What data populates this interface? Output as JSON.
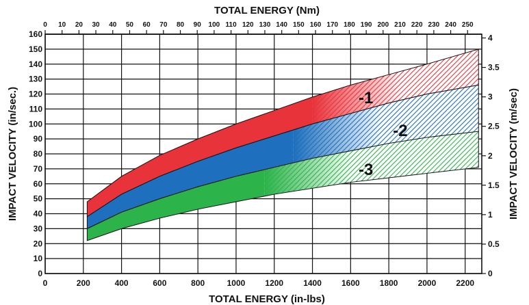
{
  "chart_data": {
    "type": "area",
    "title": "",
    "top_axis": {
      "label": "TOTAL ENERGY (Nm)",
      "range": [
        0,
        258.4
      ],
      "ticks": [
        "0",
        "10",
        "20",
        "30",
        "40",
        "50",
        "60",
        "70",
        "80",
        "90",
        "100",
        "110",
        "120",
        "130",
        "140",
        "150",
        "160",
        "170",
        "180",
        "190",
        "200",
        "210",
        "220",
        "230",
        "240",
        "250"
      ]
    },
    "x_axis": {
      "label": "TOTAL ENERGY (in-lbs)",
      "range": [
        0,
        2287
      ],
      "ticks": [
        "0",
        "200",
        "400",
        "600",
        "800",
        "1000",
        "1200",
        "1400",
        "1600",
        "1800",
        "2000",
        "2200"
      ]
    },
    "y_axis_left": {
      "label": "IMPACT VELOCITY (in/sec.)",
      "range": [
        0,
        160
      ],
      "ticks": [
        "0",
        "10",
        "20",
        "30",
        "40",
        "50",
        "60",
        "70",
        "80",
        "90",
        "100",
        "110",
        "120",
        "130",
        "140",
        "150",
        "160"
      ]
    },
    "y_axis_right": {
      "label": "IMPACT VELOCITY (m/sec)",
      "range": [
        0,
        4.064
      ],
      "ticks": [
        "0",
        "0.5",
        "1",
        "1.5",
        "2",
        "2.5",
        "3",
        "3.5",
        "4"
      ]
    },
    "grid": true,
    "series": [
      {
        "name": "-1",
        "color": "#e8333b",
        "hatch_from_x": 1400,
        "upper": [
          [
            220,
            48
          ],
          [
            400,
            65
          ],
          [
            600,
            79
          ],
          [
            800,
            90
          ],
          [
            1000,
            100
          ],
          [
            1200,
            109
          ],
          [
            1400,
            118
          ],
          [
            1600,
            126
          ],
          [
            1800,
            133
          ],
          [
            2000,
            140
          ],
          [
            2270,
            150
          ]
        ],
        "lower": [
          [
            220,
            38
          ],
          [
            400,
            53
          ],
          [
            600,
            65
          ],
          [
            800,
            75
          ],
          [
            1000,
            84
          ],
          [
            1200,
            92
          ],
          [
            1400,
            100
          ],
          [
            1600,
            107
          ],
          [
            1800,
            114
          ],
          [
            2000,
            120
          ],
          [
            2270,
            126
          ]
        ]
      },
      {
        "name": "-2",
        "color": "#1e6fbe",
        "hatch_from_x": 1300,
        "upper": [
          [
            220,
            38
          ],
          [
            400,
            53
          ],
          [
            600,
            65
          ],
          [
            800,
            75
          ],
          [
            1000,
            84
          ],
          [
            1200,
            92
          ],
          [
            1400,
            100
          ],
          [
            1600,
            107
          ],
          [
            1800,
            114
          ],
          [
            2000,
            120
          ],
          [
            2270,
            126
          ]
        ],
        "lower": [
          [
            220,
            30
          ],
          [
            400,
            41
          ],
          [
            600,
            50
          ],
          [
            800,
            58
          ],
          [
            1000,
            65
          ],
          [
            1200,
            71
          ],
          [
            1400,
            77
          ],
          [
            1600,
            82
          ],
          [
            1800,
            87
          ],
          [
            2000,
            91
          ],
          [
            2270,
            95
          ]
        ]
      },
      {
        "name": "-3",
        "color": "#2cb34a",
        "hatch_from_x": 1150,
        "upper": [
          [
            220,
            30
          ],
          [
            400,
            41
          ],
          [
            600,
            50
          ],
          [
            800,
            58
          ],
          [
            1000,
            65
          ],
          [
            1200,
            71
          ],
          [
            1400,
            77
          ],
          [
            1600,
            82
          ],
          [
            1800,
            87
          ],
          [
            2000,
            91
          ],
          [
            2270,
            95
          ]
        ],
        "lower": [
          [
            220,
            22
          ],
          [
            400,
            30
          ],
          [
            600,
            37
          ],
          [
            800,
            43
          ],
          [
            1000,
            48
          ],
          [
            1200,
            53
          ],
          [
            1400,
            57
          ],
          [
            1600,
            61
          ],
          [
            1800,
            64
          ],
          [
            2000,
            67
          ],
          [
            2270,
            71
          ]
        ]
      }
    ],
    "labels": [
      {
        "text": "-1",
        "x": 1680,
        "y": 118
      },
      {
        "text": "-2",
        "x": 1860,
        "y": 96
      },
      {
        "text": "-3",
        "x": 1680,
        "y": 70
      }
    ]
  }
}
